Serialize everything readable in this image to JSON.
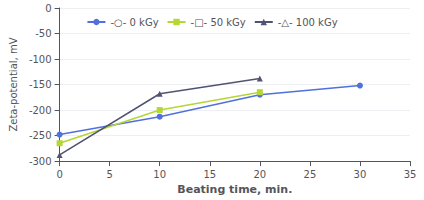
{
  "chart_data": {
    "type": "line",
    "xlabel": "Beating time, min.",
    "ylabel": "Zeta-potential, mV",
    "series": [
      {
        "name": "-○- 0 kGy",
        "x": [
          0,
          10,
          20,
          30
        ],
        "values": [
          -248,
          -213,
          -170,
          -152
        ],
        "marker": "circle",
        "line_style": "solid"
      },
      {
        "name": "-□- 50 kGy",
        "x": [
          0,
          10,
          20
        ],
        "values": [
          -265,
          -200,
          -165
        ],
        "marker": "square",
        "line_style": "solid"
      },
      {
        "name": "-△- 100 kGy",
        "x": [
          0,
          10,
          20
        ],
        "values": [
          -288,
          -168,
          -138
        ],
        "marker": "triangle",
        "line_style": "solid"
      }
    ],
    "xlim": [
      0,
      35
    ],
    "ylim": [
      -300,
      0
    ],
    "xticks": [
      0,
      5,
      10,
      15,
      20,
      25,
      30,
      35
    ],
    "yticks": [
      0,
      -50,
      -100,
      -150,
      -200,
      -250,
      -300
    ],
    "grid": true,
    "legend": "top"
  }
}
